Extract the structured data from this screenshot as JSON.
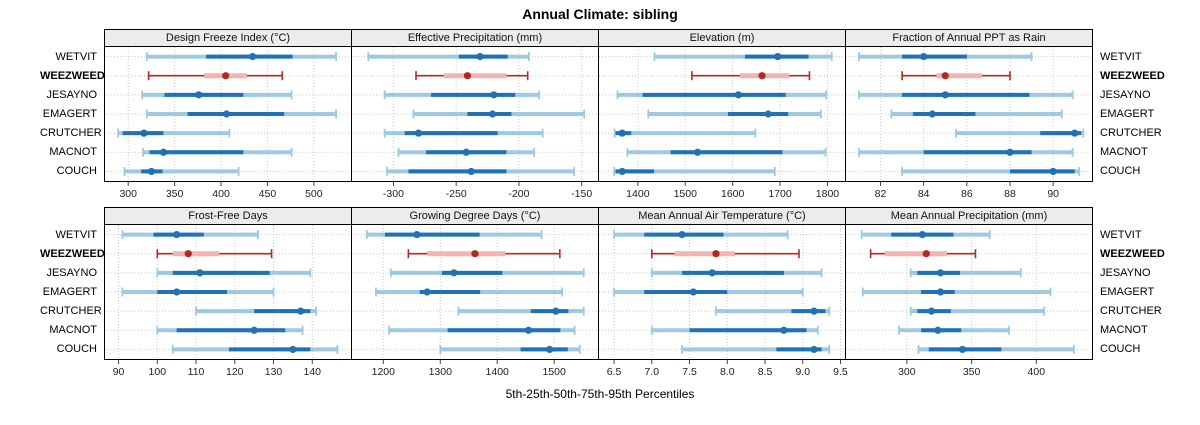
{
  "title": "Annual Climate: sibling",
  "caption": "5th-25th-50th-75th-95th Percentiles",
  "sites": [
    "WETVIT",
    "WEEZWEED",
    "JESAYNO",
    "EMAGERT",
    "CRUTCHER",
    "MACNOT",
    "COUCH"
  ],
  "highlight_site": "WEEZWEED",
  "colors": {
    "blue_dark": "#2171b5",
    "blue_light": "#9ecae1",
    "red_dark": "#b02a25",
    "red_light": "#f4b3ae",
    "grid": "#cbcbcb",
    "tick": "#444444",
    "tick_text": "#222222",
    "strip_bg": "#ececec",
    "border": "#000000"
  },
  "chart_data": {
    "type": "multi-panel-percentile",
    "percentiles": [
      5,
      25,
      50,
      75,
      95
    ],
    "rows_of_panels": 2,
    "panels_per_row": 4,
    "panels": [
      {
        "title": "Design Freeze Index (°C)",
        "xlim": [
          275,
          540
        ],
        "ticks": [
          300,
          350,
          400,
          450,
          500
        ],
        "tick_labels": [
          "300",
          "350",
          "400",
          "450",
          "500"
        ],
        "values": [
          [
            320,
            384,
            434,
            477,
            524
          ],
          [
            322,
            382,
            405,
            428,
            466
          ],
          [
            315,
            339,
            376,
            424,
            476
          ],
          [
            320,
            364,
            406,
            468,
            524
          ],
          [
            289,
            294,
            317,
            338,
            409
          ],
          [
            316,
            323,
            338,
            424,
            476
          ],
          [
            296,
            314,
            325,
            337,
            419
          ]
        ]
      },
      {
        "title": "Effective Precipitation (mm)",
        "xlim": [
          -333,
          -137
        ],
        "ticks": [
          -300,
          -250,
          -200,
          -150
        ],
        "tick_labels": [
          "-300",
          "-250",
          "-200",
          "-150"
        ],
        "values": [
          [
            -320,
            -248,
            -231,
            -209,
            -192
          ],
          [
            -282,
            -260,
            -241,
            -210,
            -193
          ],
          [
            -307,
            -270,
            -220,
            -203,
            -184
          ],
          [
            -284,
            -241,
            -221,
            -206,
            -148
          ],
          [
            -307,
            -291,
            -280,
            -217,
            -181
          ],
          [
            -296,
            -274,
            -242,
            -210,
            -188
          ],
          [
            -305,
            -288,
            -238,
            -210,
            -156
          ]
        ]
      },
      {
        "title": "Elevation (m)",
        "xlim": [
          1318,
          1837
        ],
        "ticks": [
          1400,
          1500,
          1600,
          1700,
          1800
        ],
        "tick_labels": [
          "1400",
          "1500",
          "1600",
          "1700",
          "1800"
        ],
        "values": [
          [
            1435,
            1626,
            1695,
            1760,
            1809
          ],
          [
            1514,
            1615,
            1662,
            1719,
            1762
          ],
          [
            1357,
            1410,
            1612,
            1712,
            1797
          ],
          [
            1422,
            1590,
            1675,
            1717,
            1786
          ],
          [
            1351,
            1353,
            1367,
            1386,
            1648
          ],
          [
            1378,
            1469,
            1526,
            1705,
            1796
          ],
          [
            1350,
            1353,
            1367,
            1434,
            1689
          ]
        ]
      },
      {
        "title": "Fraction of Annual PPT as Rain",
        "xlim": [
          80.4,
          91.8
        ],
        "ticks": [
          82,
          84,
          86,
          88,
          90
        ],
        "tick_labels": [
          "82",
          "84",
          "86",
          "88",
          "90"
        ],
        "values": [
          [
            81,
            83,
            84,
            86,
            89
          ],
          [
            83,
            84.6,
            85,
            86.7,
            88
          ],
          [
            81,
            83,
            85,
            88.9,
            90.9
          ],
          [
            82.5,
            83.5,
            84.4,
            86.4,
            90.4
          ],
          [
            85.5,
            89.4,
            91,
            91.3,
            91.4
          ],
          [
            81,
            84,
            88,
            89,
            90.9
          ],
          [
            83,
            88,
            90,
            91,
            91.2
          ]
        ]
      },
      {
        "title": "Frost-Free Days",
        "xlim": [
          86.5,
          150
        ],
        "ticks": [
          90,
          100,
          110,
          120,
          130,
          140
        ],
        "tick_labels": [
          "90",
          "100",
          "110",
          "120",
          "130",
          "140"
        ],
        "values": [
          [
            91,
            99,
            105,
            112,
            126
          ],
          [
            100,
            104,
            108,
            116,
            129.5
          ],
          [
            100,
            104,
            111,
            129,
            139.5
          ],
          [
            91,
            100,
            105,
            118,
            130
          ],
          [
            110,
            125,
            137,
            139.5,
            141
          ],
          [
            100,
            105,
            125,
            133,
            137.5
          ],
          [
            104,
            118.5,
            135,
            139.5,
            146.5
          ]
        ]
      },
      {
        "title": "Growing Degree Days (°C)",
        "xlim": [
          1145,
          1577
        ],
        "ticks": [
          1200,
          1300,
          1400,
          1500
        ],
        "tick_labels": [
          "1200",
          "1300",
          "1400",
          "1500"
        ],
        "values": [
          [
            1171,
            1203,
            1259,
            1369,
            1478
          ],
          [
            1244,
            1277,
            1361,
            1414,
            1510
          ],
          [
            1213,
            1303,
            1324,
            1409,
            1552
          ],
          [
            1187,
            1264,
            1277,
            1370,
            1514
          ],
          [
            1332,
            1459,
            1503,
            1525,
            1552
          ],
          [
            1210,
            1313,
            1455,
            1511,
            1536
          ],
          [
            1300,
            1441,
            1492,
            1524,
            1545
          ]
        ]
      },
      {
        "title": "Mean Annual Air Temperature (°C)",
        "xlim": [
          6.3,
          9.56
        ],
        "ticks": [
          6.5,
          7.0,
          7.5,
          8.0,
          8.5,
          9.0,
          9.5
        ],
        "tick_labels": [
          "6.5",
          "7.0",
          "7.5",
          "8.0",
          "8.5",
          "9.0",
          "9.5"
        ],
        "values": [
          [
            6.5,
            6.9,
            7.4,
            7.95,
            8.8
          ],
          [
            7.0,
            7.3,
            7.85,
            8.1,
            8.95
          ],
          [
            7.0,
            7.4,
            7.8,
            8.75,
            9.25
          ],
          [
            6.5,
            6.9,
            7.55,
            8.0,
            9.0
          ],
          [
            7.85,
            8.85,
            9.15,
            9.3,
            9.35
          ],
          [
            7.0,
            7.5,
            8.75,
            9.05,
            9.2
          ],
          [
            7.4,
            8.65,
            9.15,
            9.25,
            9.35
          ]
        ]
      },
      {
        "title": "Mean Annual Precipitation (mm)",
        "xlim": [
          253,
          443
        ],
        "ticks": [
          300,
          350,
          400
        ],
        "tick_labels": [
          "300",
          "350",
          "400"
        ],
        "values": [
          [
            265,
            288,
            312,
            336,
            364
          ],
          [
            272,
            283,
            315,
            331,
            353
          ],
          [
            303,
            308,
            326,
            341,
            388
          ],
          [
            266,
            311,
            326,
            337,
            411
          ],
          [
            303,
            308,
            319,
            334,
            406
          ],
          [
            294,
            311,
            324,
            342,
            379
          ],
          [
            309,
            317,
            343,
            373,
            429
          ]
        ]
      }
    ]
  }
}
